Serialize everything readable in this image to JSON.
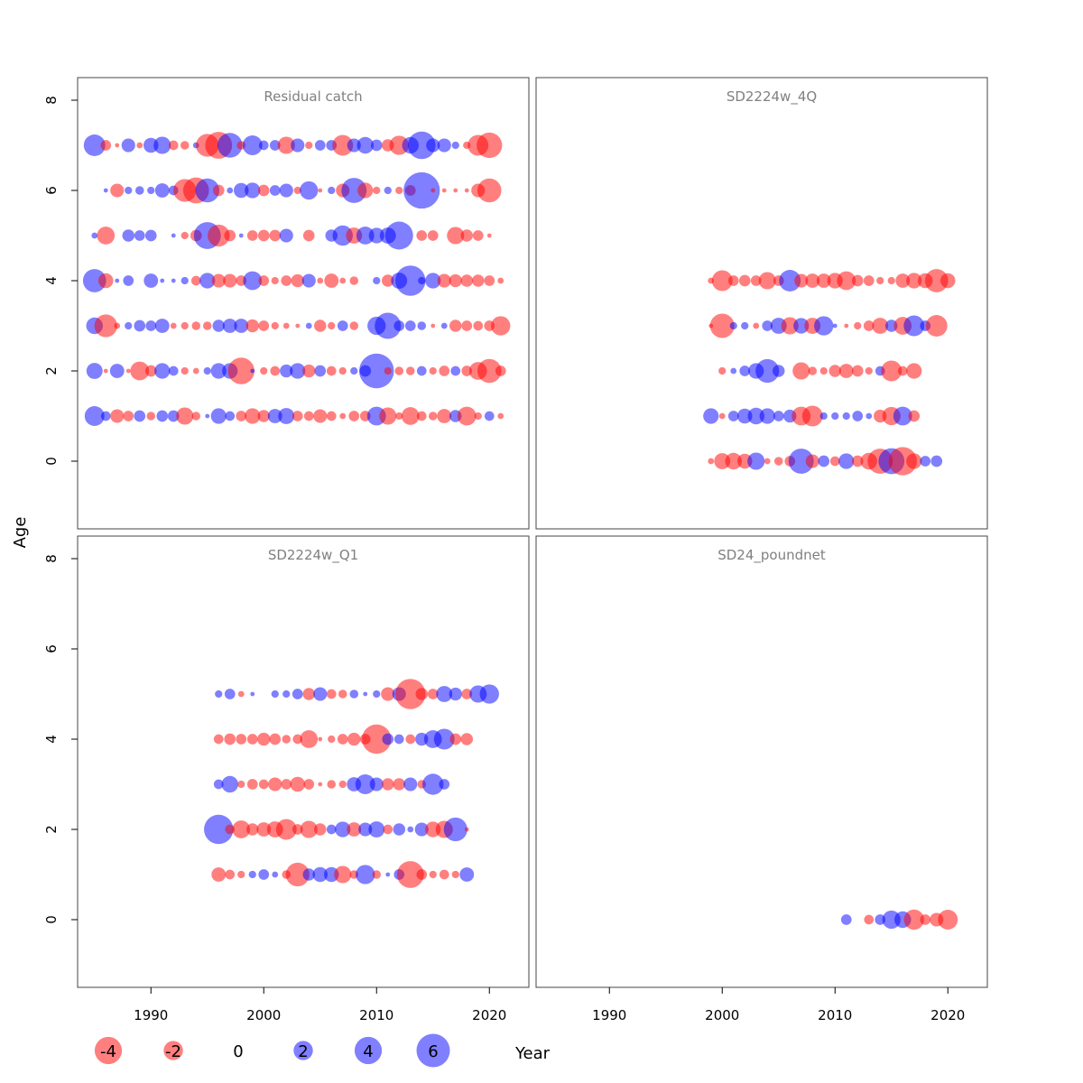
{
  "colors": {
    "negative": "#ff0000",
    "positive": "#0000ff",
    "frame": "#444444",
    "title": "#808080"
  },
  "chart_data": {
    "type": "bubble-residuals",
    "xlabel": "Year",
    "ylabel": "Age",
    "xlim": [
      1983.5,
      2023.5
    ],
    "ylim": [
      -1.5,
      8.5
    ],
    "x_ticks": [
      1990,
      2000,
      2010,
      2020
    ],
    "y_ticks": [
      0,
      2,
      4,
      6,
      8
    ],
    "size_scale": "radius proportional to sqrt(|residual|)",
    "legend": [
      {
        "value": -4,
        "label": "-4"
      },
      {
        "value": -2,
        "label": "-2"
      },
      {
        "value": 0,
        "label": "0"
      },
      {
        "value": 2,
        "label": "2"
      },
      {
        "value": 4,
        "label": "4"
      },
      {
        "value": 6,
        "label": "6"
      }
    ],
    "panels": [
      {
        "title": "Residual catch",
        "start_year": 1985,
        "residuals_by_age": {
          "7": [
            2.5,
            -0.6,
            -0.1,
            1.0,
            -0.2,
            1.2,
            1.6,
            -0.5,
            -0.4,
            0.2,
            -2.8,
            -3.9,
            3.3,
            -0.4,
            2.1,
            0.5,
            0.6,
            -1.6,
            1.0,
            -0.3,
            0.6,
            0.6,
            -2.3,
            1.0,
            1.5,
            0.7,
            -0.8,
            -2.0,
            1.5,
            4.1,
            1.0,
            1.0,
            0.3,
            -0.3,
            -2.3,
            -3.5
          ],
          "6": [
            null,
            0.1,
            -1.0,
            0.3,
            0.4,
            0.3,
            1.1,
            0.5,
            -2.8,
            -3.6,
            3.1,
            -0.7,
            0.2,
            1.2,
            1.3,
            -0.7,
            0.6,
            1.0,
            -0.3,
            1.8,
            -0.1,
            0.3,
            -1.0,
            3.4,
            -1.3,
            -0.3,
            0.3,
            -0.3,
            -0.6,
            7.1,
            -0.1,
            -0.1,
            -0.1,
            -0.1,
            -1.0,
            -3.1
          ],
          "5": [
            0.2,
            -1.7,
            0.0,
            0.8,
            0.6,
            0.7,
            0.0,
            0.1,
            -0.3,
            -0.7,
            3.9,
            -2.6,
            -0.7,
            0.1,
            -0.6,
            -0.7,
            -0.7,
            1.0,
            null,
            -0.7,
            0.0,
            0.8,
            2.2,
            -1.4,
            1.7,
            1.3,
            1.4,
            4.2,
            0.0,
            -0.6,
            -0.6,
            0.0,
            -1.6,
            -0.8,
            -0.6,
            -0.1
          ],
          "4": [
            2.9,
            -1.2,
            0.1,
            0.6,
            0.0,
            1.1,
            0.1,
            0.1,
            0.3,
            -0.5,
            1.3,
            -1.0,
            -1.0,
            -0.6,
            1.9,
            -0.6,
            -0.3,
            -0.6,
            -0.9,
            1.0,
            -0.2,
            -1.1,
            -0.2,
            -0.4,
            0.0,
            0.3,
            -0.8,
            1.4,
            4.9,
            0.3,
            1.3,
            -1.0,
            -0.9,
            -0.8,
            -0.8,
            -0.6,
            -0.2
          ],
          "3": [
            1.5,
            -2.8,
            -0.2,
            0.3,
            0.7,
            0.6,
            1.1,
            -0.2,
            -0.3,
            -0.4,
            -0.4,
            0.8,
            1.1,
            1.1,
            -0.9,
            -0.6,
            -0.3,
            -0.2,
            -0.1,
            0.2,
            -0.8,
            -0.3,
            0.6,
            -0.4,
            0.0,
            1.8,
            3.7,
            0.6,
            0.6,
            0.4,
            -0.1,
            0.2,
            -0.8,
            -0.6,
            -0.5,
            -0.6,
            -2.0
          ],
          "2": [
            1.4,
            -0.1,
            1.1,
            -0.1,
            -1.9,
            -0.7,
            1.3,
            0.5,
            -0.3,
            -0.2,
            0.3,
            1.3,
            1.3,
            -3.8,
            0.1,
            -0.3,
            -0.5,
            0.9,
            1.3,
            -0.9,
            0.7,
            -0.5,
            -0.3,
            0.3,
            0.7,
            6.5,
            -0.3,
            -0.4,
            -0.4,
            0.5,
            -0.3,
            -0.6,
            0.5,
            -0.6,
            -1.7,
            -3.1,
            -0.6
          ],
          "1": [
            2.1,
            0.5,
            -1.0,
            -0.6,
            0.7,
            -0.4,
            0.7,
            0.7,
            -1.6,
            -0.4,
            0.1,
            1.3,
            0.5,
            -0.6,
            -1.3,
            -0.8,
            1.1,
            1.4,
            -0.6,
            -0.5,
            -1.0,
            -0.5,
            -0.2,
            -0.6,
            -0.6,
            1.9,
            -1.6,
            -0.3,
            -1.7,
            -0.5,
            -0.4,
            -1.1,
            0.8,
            -1.9,
            -0.3,
            0.5,
            -0.2
          ]
        }
      },
      {
        "title": "SD2224w_4Q",
        "start_year": 1999,
        "residuals_by_age": {
          "4": [
            -0.2,
            -2.3,
            -0.6,
            -0.7,
            -0.6,
            -1.6,
            -0.6,
            2.5,
            -1.0,
            -1.1,
            -1.1,
            -1.3,
            -1.9,
            -0.7,
            -0.6,
            -0.3,
            -0.3,
            -1.1,
            -1.3,
            -1.2,
            -2.9,
            -1.2
          ],
          "3": [
            -0.1,
            -3.2,
            0.3,
            0.3,
            -0.2,
            0.6,
            1.4,
            -1.6,
            1.3,
            -1.4,
            2.0,
            0.1,
            -0.1,
            -0.3,
            -0.6,
            -1.4,
            0.8,
            -1.7,
            2.3,
            0.6,
            -2.5
          ],
          "2": [
            0.0,
            -0.3,
            0.2,
            0.6,
            1.3,
            3.0,
            0.8,
            0.0,
            -1.6,
            -0.4,
            -0.3,
            -0.8,
            -1.1,
            -0.7,
            -0.3,
            0.5,
            -2.3,
            -0.5,
            -1.3
          ],
          "1": [
            1.3,
            -0.2,
            0.6,
            1.2,
            1.5,
            1.3,
            0.6,
            0.9,
            -1.9,
            -2.3,
            0.3,
            0.3,
            0.3,
            0.6,
            0.2,
            -0.9,
            -1.8,
            1.9,
            -0.7,
            0.0
          ],
          "0": [
            -0.2,
            -1.4,
            -1.5,
            -1.2,
            1.6,
            -0.2,
            -0.4,
            -0.6,
            3.4,
            -1.0,
            0.7,
            -0.5,
            1.3,
            -0.7,
            -1.5,
            -3.4,
            3.6,
            -4.3,
            -1.3,
            0.6,
            0.7
          ]
        }
      },
      {
        "title": "SD2224w_Q1",
        "start_year": 1996,
        "residuals_by_age": {
          "5": [
            0.3,
            0.6,
            -0.2,
            0.1,
            0.0,
            0.3,
            0.3,
            0.6,
            -0.8,
            1.0,
            -0.5,
            -0.4,
            0.4,
            0.1,
            0.3,
            -1.0,
            1.0,
            -4.9,
            -0.8,
            -0.6,
            1.4,
            0.9,
            -0.6,
            1.6,
            2.0
          ],
          "4": [
            -0.5,
            -0.7,
            -0.6,
            -0.6,
            -0.9,
            -0.7,
            -0.4,
            -0.5,
            -1.7,
            -0.1,
            -0.3,
            -0.6,
            -0.9,
            -0.6,
            -4.6,
            0.7,
            0.5,
            -0.5,
            0.9,
            1.7,
            2.3,
            -0.7,
            -0.8
          ],
          "3": [
            0.5,
            1.5,
            -0.3,
            -0.6,
            -0.5,
            -1.0,
            -0.6,
            -1.2,
            -0.6,
            -0.1,
            -0.4,
            -0.3,
            1.1,
            2.1,
            1.0,
            -0.8,
            -0.8,
            1.0,
            -0.4,
            2.4,
            0.6
          ],
          "2": [
            4.6,
            -0.5,
            -1.7,
            -0.8,
            -1.1,
            -1.4,
            -2.3,
            -0.6,
            -1.6,
            -0.8,
            0.5,
            1.3,
            -1.1,
            1.0,
            1.4,
            -0.5,
            0.8,
            0.2,
            1.0,
            -1.3,
            -1.6,
            3.0,
            -0.1
          ],
          "1": [
            -1.1,
            -0.5,
            -0.3,
            0.3,
            0.6,
            0.2,
            -0.4,
            -3.0,
            0.8,
            1.2,
            1.2,
            -1.6,
            -0.4,
            2.0,
            -0.4,
            0.1,
            0.6,
            -3.9,
            -0.6,
            -0.3,
            -0.5,
            -0.3,
            1.1
          ]
        }
      },
      {
        "title": "SD24_poundnet",
        "start_year": 2011,
        "residuals_by_age": {
          "0": [
            0.6,
            null,
            -0.5,
            0.6,
            1.8,
            1.5,
            -2.2,
            -0.6,
            -1.0,
            -2.1
          ]
        }
      }
    ]
  }
}
